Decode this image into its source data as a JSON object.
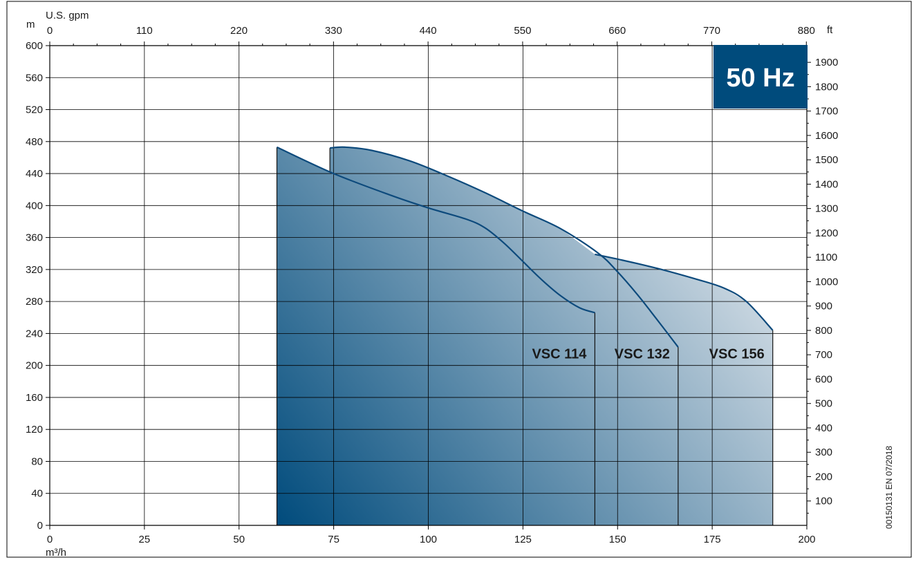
{
  "chart_data": {
    "type": "area",
    "title": "",
    "badge": {
      "label": "50 Hz",
      "color": "#004b7c"
    },
    "document_code": "00150131 EN 07/2018",
    "x_axis": {
      "unit": "m³/h",
      "range": [
        0,
        200
      ],
      "ticks": [
        0,
        25,
        50,
        75,
        100,
        125,
        150,
        175,
        200
      ],
      "tick_labels": [
        "0",
        "25",
        "50",
        "75",
        "100",
        "125",
        "150",
        "175",
        "200"
      ]
    },
    "x2_axis": {
      "unit": "U.S. gpm",
      "ticks": [
        0,
        110,
        220,
        330,
        440,
        550,
        660,
        770,
        880
      ],
      "tick_labels": [
        "0",
        "110",
        "220",
        "330",
        "440",
        "550",
        "660",
        "770",
        "880"
      ]
    },
    "y_axis": {
      "unit": "m",
      "range": [
        0,
        600
      ],
      "ticks": [
        0,
        40,
        80,
        120,
        160,
        200,
        240,
        280,
        320,
        360,
        400,
        440,
        480,
        520,
        560,
        600
      ],
      "tick_labels": [
        "0",
        "40",
        "80",
        "120",
        "160",
        "200",
        "240",
        "280",
        "320",
        "360",
        "400",
        "440",
        "480",
        "520",
        "560",
        "600"
      ]
    },
    "y2_axis": {
      "unit": "ft",
      "ticks": [
        100,
        200,
        300,
        400,
        500,
        600,
        700,
        800,
        900,
        1000,
        1100,
        1200,
        1300,
        1400,
        1500,
        1600,
        1700,
        1800,
        1900
      ],
      "tick_labels": [
        "100",
        "200",
        "300",
        "400",
        "500",
        "600",
        "700",
        "800",
        "900",
        "1000",
        "1100",
        "1200",
        "1300",
        "1400",
        "1500",
        "1600",
        "1700",
        "1800",
        "1900"
      ]
    },
    "grid": true,
    "colors": {
      "curve": "#0d4a7c",
      "fill_dark": "#004b7c",
      "fill_light": "#f4f4f6",
      "grid": "#000000"
    },
    "series": [
      {
        "name": "VSC 114",
        "points": [
          [
            60,
            473
          ],
          [
            75,
            440
          ],
          [
            90,
            413
          ],
          [
            100,
            397
          ],
          [
            110,
            383
          ],
          [
            115,
            372
          ],
          [
            120,
            353
          ],
          [
            125,
            330
          ],
          [
            130,
            307
          ],
          [
            135,
            287
          ],
          [
            140,
            272
          ],
          [
            144,
            266
          ]
        ],
        "end_x": 144
      },
      {
        "name": "VSC 132",
        "points": [
          [
            74,
            472
          ],
          [
            78,
            473
          ],
          [
            85,
            469
          ],
          [
            95,
            456
          ],
          [
            105,
            437
          ],
          [
            115,
            416
          ],
          [
            125,
            393
          ],
          [
            135,
            371
          ],
          [
            145,
            340
          ],
          [
            150,
            317
          ],
          [
            155,
            290
          ],
          [
            160,
            260
          ],
          [
            166,
            223
          ]
        ],
        "end_x": 166
      },
      {
        "name": "VSC 156",
        "points": [
          [
            60,
            473
          ],
          [
            74,
            442
          ],
          [
            74,
            472
          ],
          [
            78,
            473
          ],
          [
            85,
            469
          ],
          [
            95,
            456
          ],
          [
            105,
            437
          ],
          [
            115,
            416
          ],
          [
            125,
            393
          ],
          [
            135,
            371
          ],
          [
            144,
            339
          ],
          [
            150,
            333
          ],
          [
            160,
            322
          ],
          [
            170,
            309
          ],
          [
            178,
            297
          ],
          [
            184,
            280
          ],
          [
            191,
            244
          ]
        ],
        "end_x": 191
      }
    ]
  }
}
